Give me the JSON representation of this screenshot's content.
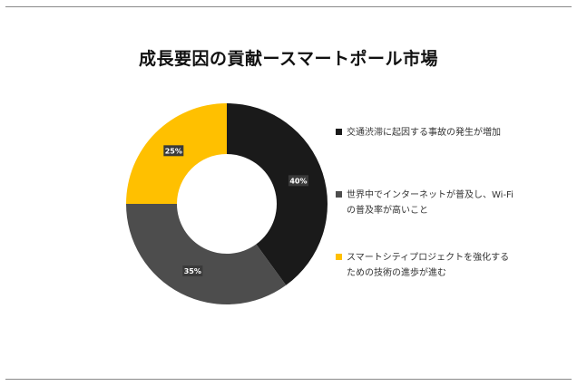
{
  "title": "成長要因の貢献ースマートポール市場",
  "chart_data": {
    "type": "pie",
    "donut": true,
    "categories": [
      "交通渋滞に起因する事故の発生が増加",
      "世界中でインターネットが普及し、Wi-Fi\nの普及率が高いこと",
      "スマートシティプロジェクトを強化する\nための技術の進歩が進む"
    ],
    "values": [
      40,
      35,
      25
    ],
    "value_labels": [
      "40%",
      "35%",
      "25%"
    ],
    "colors": [
      "#1a1a1a",
      "#4d4d4d",
      "#ffc000"
    ],
    "legend_placement": "right"
  }
}
